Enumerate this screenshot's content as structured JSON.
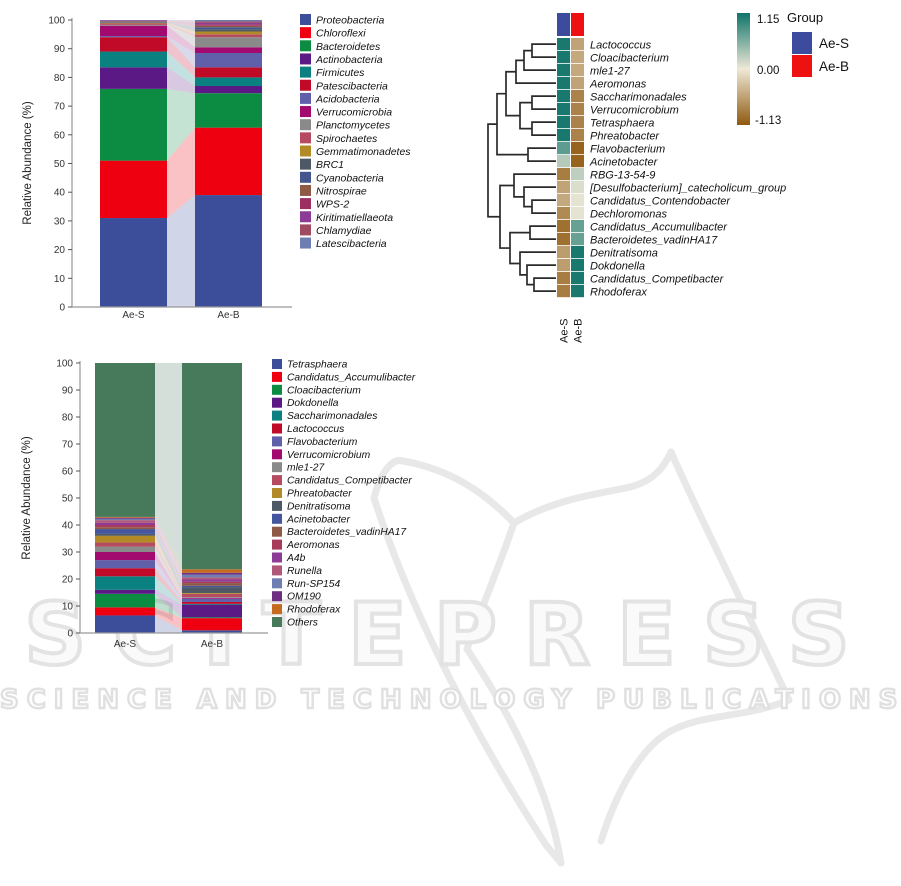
{
  "watermark": {
    "title": "SCITEPRESS",
    "subtitle": "SCIENCE AND TECHNOLOGY PUBLICATIONS",
    "color": "#e3e3e3"
  },
  "chart_data": [
    {
      "id": "phylum_stacked_bars",
      "type": "bar",
      "subtype": "stacked_alluvial",
      "title": "",
      "xlabel": "",
      "ylabel": "Relative Abundance (%)",
      "ylim": [
        0,
        100
      ],
      "ytick_step": 10,
      "legend_position": "right",
      "categories": [
        "Ae-S",
        "Ae-B"
      ],
      "series": [
        {
          "name": "Proteobacteria",
          "color": "#3c4e9a",
          "values": [
            31.0,
            39.0
          ]
        },
        {
          "name": "Chloroflexi",
          "color": "#ee0011",
          "values": [
            20.0,
            23.5
          ]
        },
        {
          "name": "Bacteroidetes",
          "color": "#0b8c42",
          "values": [
            25.0,
            12.0
          ]
        },
        {
          "name": "Actinobacteria",
          "color": "#5a1985",
          "values": [
            7.5,
            2.5
          ]
        },
        {
          "name": "Firmicutes",
          "color": "#0a8080",
          "values": [
            5.5,
            3.0
          ]
        },
        {
          "name": "Patescibacteria",
          "color": "#c00a28",
          "values": [
            5.0,
            3.5
          ]
        },
        {
          "name": "Acidobacteria",
          "color": "#6060aa",
          "values": [
            0.4,
            5.0
          ]
        },
        {
          "name": "Verrucomicrobia",
          "color": "#a30a70",
          "values": [
            3.6,
            2.0
          ]
        },
        {
          "name": "Planctomycetes",
          "color": "#8a8a8a",
          "values": [
            0.3,
            3.5
          ]
        },
        {
          "name": "Spirochaetes",
          "color": "#b54a60",
          "values": [
            0.5,
            1.0
          ]
        },
        {
          "name": "Gemmatimonadetes",
          "color": "#b38a28",
          "values": [
            0.2,
            1.0
          ]
        },
        {
          "name": "BRC1",
          "color": "#4d5a66",
          "values": [
            0.2,
            0.8
          ]
        },
        {
          "name": "Cyanobacteria",
          "color": "#44568e",
          "values": [
            0.2,
            0.7
          ]
        },
        {
          "name": "Nitrospirae",
          "color": "#8e5a46",
          "values": [
            0.2,
            0.5
          ]
        },
        {
          "name": "WPS-2",
          "color": "#9c2e62",
          "values": [
            0.1,
            0.5
          ]
        },
        {
          "name": "Kiritimatiellaeota",
          "color": "#8c3c96",
          "values": [
            0.1,
            0.5
          ]
        },
        {
          "name": "Chlamydiae",
          "color": "#9e4a60",
          "values": [
            0.1,
            0.5
          ]
        },
        {
          "name": "Latescibacteria",
          "color": "#6e7eb2",
          "values": [
            0.1,
            0.5
          ]
        }
      ]
    },
    {
      "id": "genus_heatmap",
      "type": "heatmap",
      "columns": [
        "Ae-S",
        "Ae-B"
      ],
      "group_legend": {
        "title": "Group",
        "items": [
          {
            "label": "Ae-S",
            "color": "#3c4b9e"
          },
          {
            "label": "Ae-B",
            "color": "#ee1111"
          }
        ]
      },
      "colorbar": {
        "max_label": "1.15",
        "mid_label": "0.00",
        "min_label": "-1.13",
        "max_value": 1.15,
        "min_value": -1.13,
        "top_color": "#0f746a",
        "mid_color": "#efe8d6",
        "bottom_color": "#8f5a10"
      },
      "rows": [
        {
          "name": "Lactococcus",
          "values": [
            1.1,
            -0.55
          ]
        },
        {
          "name": "Cloacibacterium",
          "values": [
            1.1,
            -0.5
          ]
        },
        {
          "name": "mle1-27",
          "values": [
            1.1,
            -0.5
          ]
        },
        {
          "name": "Aeromonas",
          "values": [
            1.1,
            -0.55
          ]
        },
        {
          "name": "Saccharimonadales",
          "values": [
            1.1,
            -0.8
          ]
        },
        {
          "name": "Verrucomicrobium",
          "values": [
            1.1,
            -0.8
          ]
        },
        {
          "name": "Tetrasphaera",
          "values": [
            1.1,
            -0.8
          ]
        },
        {
          "name": "Phreatobacter",
          "values": [
            1.1,
            -0.8
          ]
        },
        {
          "name": "Flavobacterium",
          "values": [
            0.75,
            -1.05
          ]
        },
        {
          "name": "Acinetobacter",
          "values": [
            0.3,
            -1.05
          ]
        },
        {
          "name": "RBG-13-54-9",
          "values": [
            -0.85,
            0.25
          ]
        },
        {
          "name": "[Desulfobacterium]_catecholicum_group",
          "values": [
            -0.55,
            0.1
          ]
        },
        {
          "name": "Candidatus_Contendobacter",
          "values": [
            -0.5,
            0.05
          ]
        },
        {
          "name": "Dechloromonas",
          "values": [
            -0.75,
            0.05
          ]
        },
        {
          "name": "Candidatus_Accumulibacter",
          "values": [
            -0.95,
            0.7
          ]
        },
        {
          "name": "Bacteroidetes_vadinHA17",
          "values": [
            -0.95,
            0.7
          ]
        },
        {
          "name": "Denitratisoma",
          "values": [
            -0.6,
            1.1
          ]
        },
        {
          "name": "Dokdonella",
          "values": [
            -0.6,
            1.1
          ]
        },
        {
          "name": "Candidatus_Competibacter",
          "values": [
            -0.85,
            1.1
          ]
        },
        {
          "name": "Rhodoferax",
          "values": [
            -0.85,
            1.1
          ]
        }
      ],
      "linkage": [
        [
          0,
          1,
          532
        ],
        [
          20,
          2,
          524
        ],
        [
          21,
          3,
          516
        ],
        [
          4,
          5,
          532
        ],
        [
          6,
          7,
          532
        ],
        [
          23,
          24,
          520
        ],
        [
          22,
          25,
          506
        ],
        [
          8,
          9,
          528
        ],
        [
          26,
          27,
          497
        ],
        [
          12,
          13,
          532
        ],
        [
          11,
          29,
          524
        ],
        [
          10,
          30,
          514
        ],
        [
          14,
          15,
          530
        ],
        [
          18,
          19,
          534
        ],
        [
          17,
          33,
          527
        ],
        [
          16,
          34,
          520
        ],
        [
          32,
          35,
          510
        ],
        [
          31,
          36,
          500
        ],
        [
          28,
          37,
          488
        ]
      ]
    },
    {
      "id": "genus_stacked_bars",
      "type": "bar",
      "subtype": "stacked_alluvial",
      "title": "",
      "xlabel": "",
      "ylabel": "Relative Abundance (%)",
      "ylim": [
        0,
        100
      ],
      "ytick_step": 10,
      "legend_position": "right",
      "categories": [
        "Ae-S",
        "Ae-B"
      ],
      "series": [
        {
          "name": "Tetrasphaera",
          "color": "#3c4e9a",
          "values": [
            6.5,
            1.0
          ]
        },
        {
          "name": "Candidatus_Accumulibacter",
          "color": "#ee0011",
          "values": [
            3.0,
            4.5
          ]
        },
        {
          "name": "Cloacibacterium",
          "color": "#0b8c42",
          "values": [
            5.0,
            0.3
          ]
        },
        {
          "name": "Dokdonella",
          "color": "#5a1985",
          "values": [
            1.5,
            4.7
          ]
        },
        {
          "name": "Saccharimonadales",
          "color": "#0a8080",
          "values": [
            5.0,
            0.3
          ]
        },
        {
          "name": "Lactococcus",
          "color": "#c00a28",
          "values": [
            3.0,
            0.7
          ]
        },
        {
          "name": "Flavobacterium",
          "color": "#6060aa",
          "values": [
            3.0,
            1.2
          ]
        },
        {
          "name": "Verrucomicrobium",
          "color": "#a30a70",
          "values": [
            3.0,
            0.3
          ]
        },
        {
          "name": "mle1-27",
          "color": "#8a8a8a",
          "values": [
            2.0,
            0.3
          ]
        },
        {
          "name": "Candidatus_Competibacter",
          "color": "#b54a60",
          "values": [
            1.5,
            1.2
          ]
        },
        {
          "name": "Phreatobacter",
          "color": "#b38a28",
          "values": [
            2.5,
            0.3
          ]
        },
        {
          "name": "Denitratisoma",
          "color": "#4d5a66",
          "values": [
            0.7,
            2.2
          ]
        },
        {
          "name": "Acinetobacter",
          "color": "#46569e",
          "values": [
            1.8,
            0.5
          ]
        },
        {
          "name": "Bacteroidetes_vadinHA17",
          "color": "#8e5a46",
          "values": [
            0.7,
            1.0
          ]
        },
        {
          "name": "Aeromonas",
          "color": "#a83a5a",
          "values": [
            0.8,
            0.5
          ]
        },
        {
          "name": "A4b",
          "color": "#8c3c96",
          "values": [
            0.8,
            0.8
          ]
        },
        {
          "name": "Runella",
          "color": "#b05878",
          "values": [
            1.0,
            0.8
          ]
        },
        {
          "name": "Run-SP154",
          "color": "#6e7eb2",
          "values": [
            0.5,
            1.0
          ]
        },
        {
          "name": "OM190",
          "color": "#6e2e82",
          "values": [
            0.4,
            0.7
          ]
        },
        {
          "name": "Rhodoferax",
          "color": "#c56a1e",
          "values": [
            0.3,
            1.3
          ]
        },
        {
          "name": "Others",
          "color": "#47795b",
          "values": [
            57.0,
            76.4
          ]
        }
      ]
    }
  ]
}
